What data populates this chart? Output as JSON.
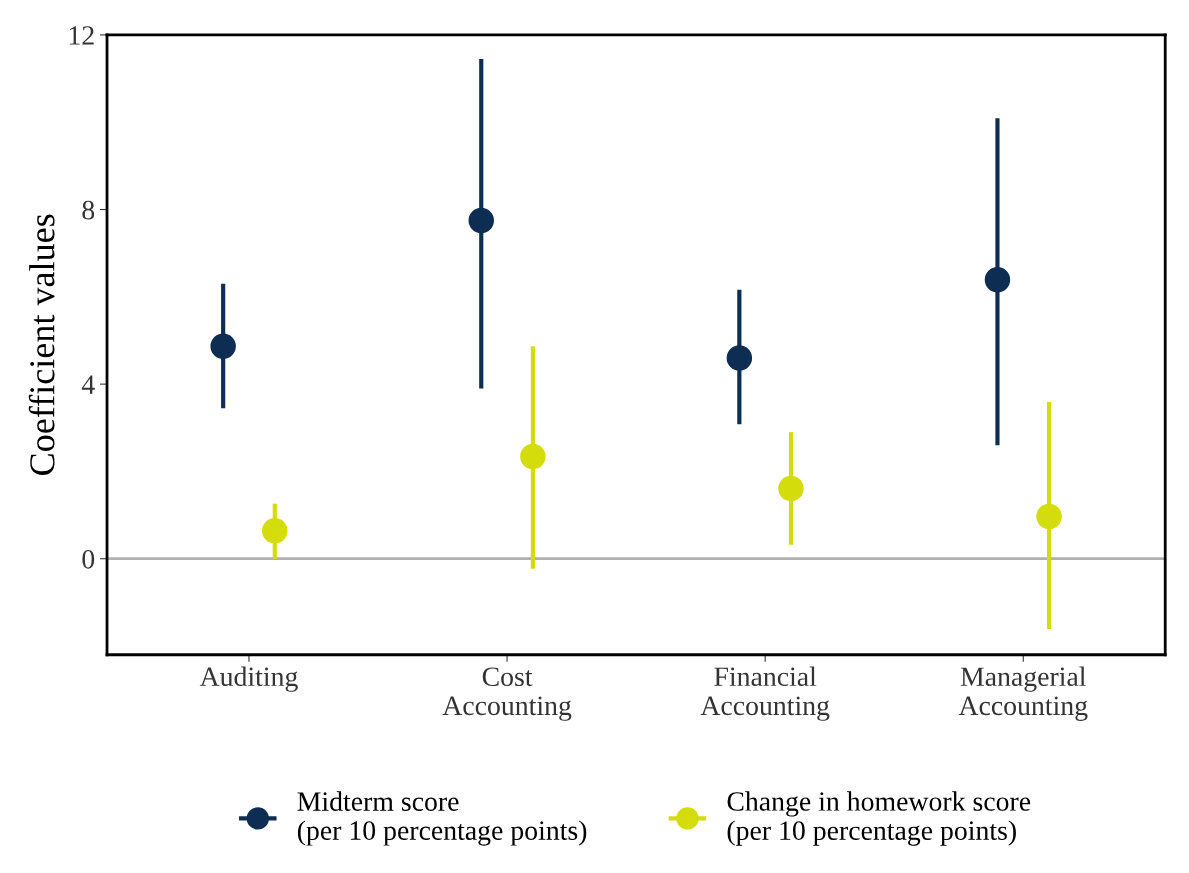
{
  "chart_data": {
    "type": "scatter",
    "ylabel": "Coefficient values",
    "categories": [
      "Auditing",
      "Cost\nAccounting",
      "Financial\nAccounting",
      "Managerial\nAccounting"
    ],
    "series": [
      {
        "name": "Midterm score\n(per 10 percentage points)",
        "color": "#0d2d52",
        "values": [
          4.87,
          7.75,
          4.6,
          6.39
        ],
        "errors": [
          [
            3.45,
            6.3
          ],
          [
            3.9,
            11.45
          ],
          [
            3.08,
            6.16
          ],
          [
            2.6,
            10.09
          ]
        ]
      },
      {
        "name": "Change in homework score\n(per 10 percentage points)",
        "color": "#d4dc0c",
        "values": [
          0.64,
          2.34,
          1.61,
          0.97
        ],
        "errors": [
          [
            0.0,
            1.26
          ],
          [
            -0.23,
            4.87
          ],
          [
            0.32,
            2.9
          ],
          [
            -1.61,
            3.59
          ]
        ]
      }
    ],
    "ylim": [
      -2.2,
      12
    ],
    "yticks": [
      0,
      4,
      8,
      12
    ],
    "ref_lines": [
      {
        "axis": "y",
        "value": 0,
        "color": "#b0b0b0"
      }
    ],
    "grid": false,
    "legend": "bottom",
    "marker": "circle"
  }
}
